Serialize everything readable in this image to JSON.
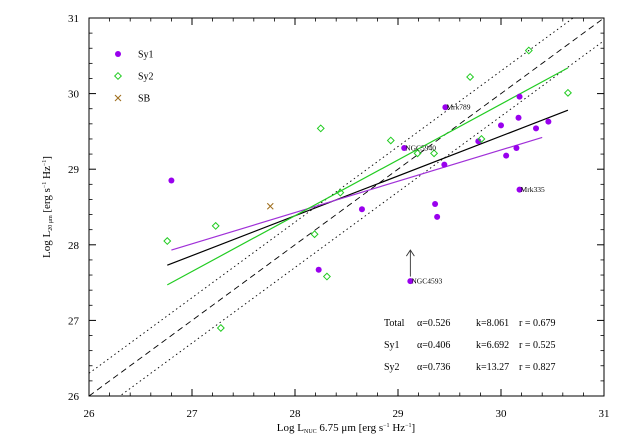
{
  "chart_data": {
    "type": "scatter",
    "xlabel": {
      "main": "Log L",
      "sub": "NUC",
      "rest": " 6.75 μm [erg s",
      "sup": "−1",
      "end": " Hz",
      "sup2": "−1",
      "close": "]"
    },
    "ylabel": {
      "main": "Log L",
      "sub": "20 μm",
      "rest": " [erg s",
      "sup": "−1",
      "end": " Hz",
      "sup2": "−1",
      "close": "]"
    },
    "xlim": [
      26,
      31
    ],
    "ylim": [
      26,
      31
    ],
    "xticks": [
      "26",
      "27",
      "28",
      "29",
      "30",
      "31"
    ],
    "yticks": [
      "26",
      "27",
      "28",
      "29",
      "30",
      "31"
    ],
    "legend": [
      {
        "label": "Sy1",
        "marker": "dot",
        "color": "#9900ee"
      },
      {
        "label": "Sy2",
        "marker": "diamond",
        "color": "#22cc22"
      },
      {
        "label": "SB",
        "marker": "cross",
        "color": "#a07020"
      }
    ],
    "series": [
      {
        "name": "Sy1",
        "marker": "dot",
        "color": "#9900ee",
        "points": [
          [
            26.8,
            28.85
          ],
          [
            28.23,
            27.67
          ],
          [
            28.65,
            28.47
          ],
          [
            29.06,
            29.28
          ],
          [
            29.12,
            27.52
          ],
          [
            29.36,
            28.54
          ],
          [
            29.38,
            28.37
          ],
          [
            29.45,
            29.06
          ],
          [
            29.46,
            29.82
          ],
          [
            29.78,
            29.37
          ],
          [
            30.0,
            29.58
          ],
          [
            30.05,
            29.18
          ],
          [
            30.15,
            29.28
          ],
          [
            30.17,
            29.68
          ],
          [
            30.18,
            29.96
          ],
          [
            30.18,
            28.73
          ],
          [
            30.34,
            29.54
          ],
          [
            30.46,
            29.63
          ]
        ]
      },
      {
        "name": "Sy2",
        "marker": "diamond",
        "color": "#22cc22",
        "points": [
          [
            26.76,
            28.05
          ],
          [
            27.23,
            28.25
          ],
          [
            27.28,
            26.9
          ],
          [
            28.19,
            28.14
          ],
          [
            28.25,
            29.54
          ],
          [
            28.31,
            27.58
          ],
          [
            28.44,
            28.69
          ],
          [
            28.93,
            29.38
          ],
          [
            29.19,
            29.21
          ],
          [
            29.35,
            29.21
          ],
          [
            29.7,
            30.22
          ],
          [
            29.81,
            29.4
          ],
          [
            30.27,
            30.57
          ],
          [
            30.65,
            30.01
          ]
        ]
      },
      {
        "name": "SB",
        "marker": "cross",
        "color": "#a07020",
        "points": [
          [
            27.76,
            28.51
          ]
        ]
      }
    ],
    "fit_lines": [
      {
        "name": "Total",
        "color": "#000000",
        "x": [
          26.76,
          30.65
        ],
        "y": [
          27.73,
          29.78
        ]
      },
      {
        "name": "Sy1",
        "color": "#a030d8",
        "x": [
          26.8,
          30.4
        ],
        "y": [
          27.93,
          29.42
        ]
      },
      {
        "name": "Sy2",
        "color": "#22cc22",
        "x": [
          26.76,
          30.65
        ],
        "y": [
          27.47,
          30.34
        ]
      }
    ],
    "reference_lines": [
      {
        "style": "dashed",
        "offset": 0
      },
      {
        "style": "dotted",
        "offset": 0.3
      },
      {
        "style": "dotted",
        "offset": -0.3
      }
    ],
    "annotations": [
      {
        "text": "Mrk789",
        "x": 29.46,
        "y": 29.82
      },
      {
        "text": "NGC5940",
        "x": 29.06,
        "y": 29.28
      },
      {
        "text": "Mrk335",
        "x": 30.18,
        "y": 28.73
      },
      {
        "text": "NGC4593",
        "x": 29.12,
        "y": 27.52
      }
    ],
    "upper_limit_arrow": {
      "x": 29.12,
      "y_from": 27.58,
      "y_to": 27.93
    },
    "stats": [
      {
        "label": "Total",
        "alpha": "α=0.526",
        "k": "k=8.061",
        "r": "r = 0.679"
      },
      {
        "label": "Sy1",
        "alpha": "α=0.406",
        "k": "k=6.692",
        "r": "r = 0.525"
      },
      {
        "label": "Sy2",
        "alpha": "α=0.736",
        "k": "k=13.27",
        "r": "r = 0.827"
      }
    ]
  }
}
